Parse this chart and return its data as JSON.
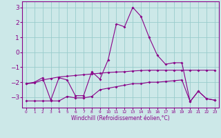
{
  "xlabel": "Windchill (Refroidissement éolien,°C)",
  "background_color": "#cce8e8",
  "grid_color": "#99cccc",
  "line_color": "#880088",
  "x": [
    0,
    1,
    2,
    3,
    4,
    5,
    6,
    7,
    8,
    9,
    10,
    11,
    12,
    13,
    14,
    15,
    16,
    17,
    18,
    19,
    20,
    21,
    22,
    23
  ],
  "line1": [
    -2.1,
    -2.05,
    -1.85,
    -1.75,
    -1.65,
    -1.6,
    -1.55,
    -1.5,
    -1.45,
    -1.4,
    -1.35,
    -1.32,
    -1.3,
    -1.25,
    -1.22,
    -1.2,
    -1.2,
    -1.2,
    -1.2,
    -1.2,
    -1.2,
    -1.2,
    -1.2,
    -1.2
  ],
  "line2": [
    -2.1,
    -2.0,
    -1.7,
    -3.2,
    -1.7,
    -1.85,
    -2.9,
    -2.9,
    -1.3,
    -1.8,
    -0.5,
    1.9,
    1.7,
    3.0,
    2.4,
    1.0,
    -0.2,
    -0.8,
    -0.7,
    -0.7,
    -3.3,
    -2.6,
    -3.1,
    -3.2
  ],
  "line3": [
    -3.25,
    -3.25,
    -3.25,
    -3.25,
    -3.25,
    -2.95,
    -3.05,
    -3.05,
    -2.95,
    -2.5,
    -2.4,
    -2.3,
    -2.2,
    -2.1,
    -2.1,
    -2.0,
    -2.0,
    -1.95,
    -1.9,
    -1.85,
    -3.3,
    -2.6,
    -3.1,
    -3.2
  ],
  "ylim": [
    -3.7,
    3.4
  ],
  "yticks": [
    -3,
    -2,
    -1,
    0,
    1,
    2,
    3
  ],
  "xlim": [
    -0.5,
    23.5
  ],
  "figsize": [
    3.2,
    2.0
  ],
  "dpi": 100
}
